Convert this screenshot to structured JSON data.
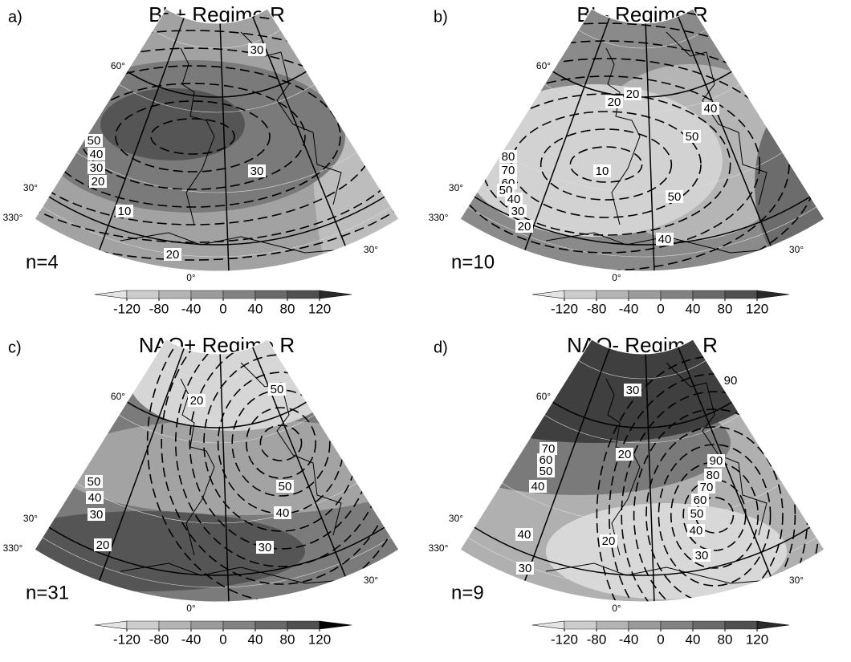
{
  "panels": [
    {
      "label": "a)",
      "title": "BL+ Regime R",
      "n": "n=4",
      "contour_labels": [
        30,
        50,
        40,
        30,
        20,
        30,
        10,
        20
      ],
      "lat_labels": [
        "60°",
        "30°"
      ],
      "lon_labels": [
        "330°",
        "0°",
        "30°"
      ],
      "colorbar_ticks": [
        -120,
        -80,
        -40,
        0,
        40,
        80,
        120
      ]
    },
    {
      "label": "b)",
      "title": "BL- Regime R",
      "n": "n=10",
      "contour_labels": [
        20,
        20,
        40,
        50,
        80,
        70,
        60,
        50,
        40,
        30,
        20,
        10,
        50,
        40
      ],
      "lat_labels": [
        "60°",
        "30°"
      ],
      "lon_labels": [
        "330°",
        "0°",
        "30°"
      ],
      "colorbar_ticks": [
        -120,
        -80,
        -40,
        0,
        40,
        80,
        120
      ]
    },
    {
      "label": "c)",
      "title": "NAO+ Regime R",
      "n": "n=31",
      "contour_labels": [
        50,
        20,
        50,
        40,
        30,
        50,
        40,
        20,
        30
      ],
      "lat_labels": [
        "60°",
        "30°"
      ],
      "lon_labels": [
        "330°",
        "0°",
        "30°"
      ],
      "colorbar_ticks": [
        -120,
        -80,
        -40,
        0,
        40,
        80,
        120
      ]
    },
    {
      "label": "d)",
      "title": "NAO- Regime R",
      "n": "n=9",
      "contour_labels": [
        30,
        90,
        70,
        60,
        50,
        40,
        20,
        90,
        80,
        70,
        60,
        50,
        40,
        40,
        20,
        30,
        30
      ],
      "lat_labels": [
        "60°",
        "30°"
      ],
      "lon_labels": [
        "330°",
        "0°",
        "30°"
      ],
      "colorbar_ticks": [
        -120,
        -80,
        -40,
        0,
        40,
        80,
        120
      ]
    }
  ]
}
